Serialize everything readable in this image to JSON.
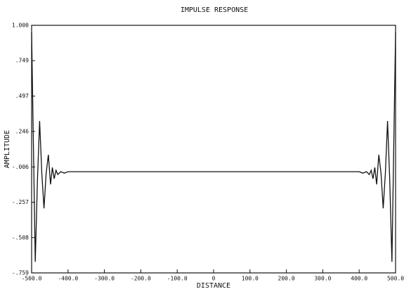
{
  "chart_data": {
    "type": "line",
    "title": "IMPULSE RESPONSE",
    "xlabel": "DISTANCE",
    "ylabel": "AMPLITUDE",
    "x": [
      -500,
      -496,
      -490,
      -484,
      -478,
      -472,
      -466,
      -460,
      -454,
      -448,
      -443,
      -438,
      -433,
      -428,
      -420,
      -410,
      -400,
      -350,
      -300,
      -250,
      -200,
      -150,
      -100,
      -50,
      0,
      50,
      100,
      150,
      200,
      250,
      300,
      350,
      400,
      410,
      420,
      428,
      433,
      438,
      443,
      448,
      454,
      460,
      466,
      472,
      478,
      484,
      490,
      496,
      500
    ],
    "series": [
      {
        "color": "#111111",
        "values": [
          0.95,
          0.3,
          -0.68,
          -0.1,
          0.32,
          -0.05,
          -0.3,
          -0.05,
          0.08,
          -0.13,
          -0.01,
          -0.09,
          -0.03,
          -0.06,
          -0.04,
          -0.05,
          -0.04,
          -0.04,
          -0.04,
          -0.04,
          -0.04,
          -0.04,
          -0.04,
          -0.04,
          -0.04,
          -0.04,
          -0.04,
          -0.04,
          -0.04,
          -0.04,
          -0.04,
          -0.04,
          -0.04,
          -0.05,
          -0.04,
          -0.06,
          -0.03,
          -0.09,
          -0.01,
          -0.13,
          0.08,
          -0.05,
          -0.3,
          -0.05,
          0.32,
          -0.1,
          -0.68,
          0.3,
          0.95
        ]
      }
    ],
    "xlim": [
      -500,
      500
    ],
    "xticks": [
      {
        "value": -500,
        "label": "-500.0"
      },
      {
        "value": -400,
        "label": "-400.0"
      },
      {
        "value": -300,
        "label": "-300.0"
      },
      {
        "value": -200,
        "label": "-200.0"
      },
      {
        "value": -100,
        "label": "-100.0"
      },
      0,
      {
        "value": 100,
        "label": "100.0"
      },
      {
        "value": 200,
        "label": "200.0"
      },
      {
        "value": 300,
        "label": "300.0"
      },
      {
        "value": 400,
        "label": "400.0"
      },
      {
        "value": 500,
        "label": "500.0"
      }
    ],
    "ylim": [
      -0.759,
      1.0
    ],
    "yticks": [
      {
        "value": -0.759,
        "label": "-.759"
      },
      {
        "value": -0.508,
        "label": "-.508"
      },
      {
        "value": -0.257,
        "label": "-.257"
      },
      {
        "value": -0.006,
        "label": "-.006"
      },
      {
        "value": 0.246,
        "label": ".246"
      },
      {
        "value": 0.497,
        "label": ".497"
      },
      {
        "value": 0.749,
        "label": ".749"
      },
      {
        "value": 1.0,
        "label": "1.000"
      }
    ]
  }
}
